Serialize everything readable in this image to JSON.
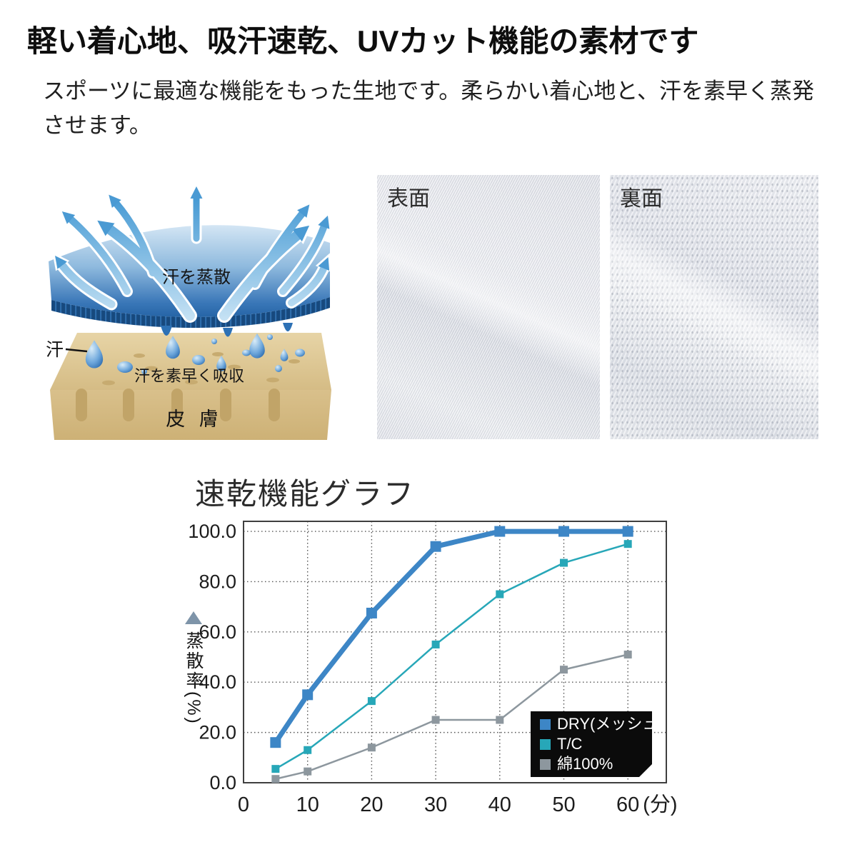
{
  "page": {
    "title": "軽い着心地、吸汗速乾、UVカット機能の素材です",
    "description": "スポーツに最適な機能をもった生地です。柔らかい着心地と、汗を素早く蒸発させます。"
  },
  "diagram": {
    "evaporate_label": "汗を蒸散",
    "sweat_label": "汗",
    "sweat_pointer": "—",
    "absorb_label": "汗を素早く吸収",
    "skin_label": "皮 膚"
  },
  "photos": {
    "front_label": "表面",
    "back_label": "裏面"
  },
  "chart_data": {
    "type": "line",
    "title": "速乾機能グラフ",
    "ylabel": "蒸散率(%)",
    "xunit": "(分)",
    "x": [
      5,
      10,
      20,
      30,
      40,
      50,
      60
    ],
    "xticks": [
      0,
      10,
      20,
      30,
      40,
      50,
      60
    ],
    "yticks": [
      0,
      20,
      40,
      60,
      80,
      100
    ],
    "xlim": [
      0,
      66
    ],
    "ylim": [
      0,
      104
    ],
    "grid": "dotted",
    "grid_color": "#555555",
    "border_color": "#3f3f3f",
    "legend_position": "bottom-right",
    "legend_bg": "#0b0b0b",
    "legend_text_color": "#ffffff",
    "series": [
      {
        "name": "DRY(メッシュ)",
        "color": "#3d86c6",
        "width": 7,
        "values": [
          16,
          35,
          67.5,
          94,
          100,
          100,
          100
        ]
      },
      {
        "name": "T/C",
        "color": "#27a7b8",
        "width": 2.5,
        "values": [
          5.5,
          13,
          32.5,
          55,
          75,
          87.5,
          95
        ]
      },
      {
        "name": "綿100%",
        "color": "#8d979e",
        "width": 2.5,
        "values": [
          1.5,
          4.5,
          14,
          25,
          25,
          45,
          51
        ]
      }
    ]
  }
}
